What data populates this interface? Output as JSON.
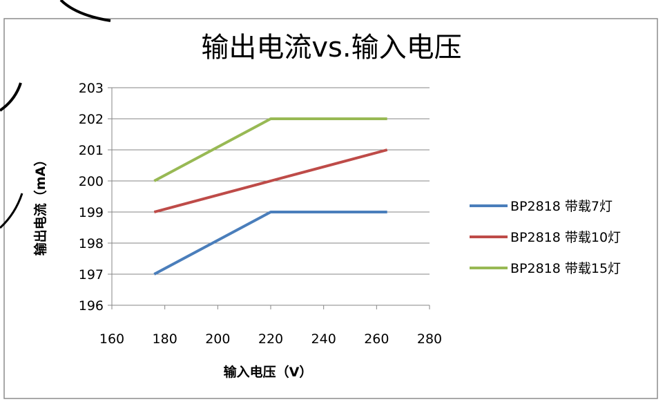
{
  "chart_data": {
    "type": "line",
    "title": "输出电流vs.输入电压",
    "xlabel": "输入电压（V）",
    "ylabel": "输出电流（mA）",
    "xlim": [
      160,
      280
    ],
    "ylim": [
      196,
      203
    ],
    "xticks": [
      "160",
      "180",
      "200",
      "220",
      "240",
      "260",
      "280"
    ],
    "yticks": [
      "196",
      "197",
      "198",
      "199",
      "200",
      "201",
      "202",
      "203"
    ],
    "grid": "horizontal",
    "legend_position": "right",
    "series": [
      {
        "name": "BP2818 带载7灯",
        "color": "#4a7ebb",
        "x": [
          176,
          220,
          264
        ],
        "y": [
          197,
          199,
          199
        ]
      },
      {
        "name": "BP2818 带载10灯",
        "color": "#be4b48",
        "x": [
          176,
          220,
          264
        ],
        "y": [
          199,
          200,
          201
        ]
      },
      {
        "name": "BP2818 带载15灯",
        "color": "#98b954",
        "x": [
          176,
          220,
          264
        ],
        "y": [
          200,
          202,
          202
        ]
      }
    ]
  }
}
